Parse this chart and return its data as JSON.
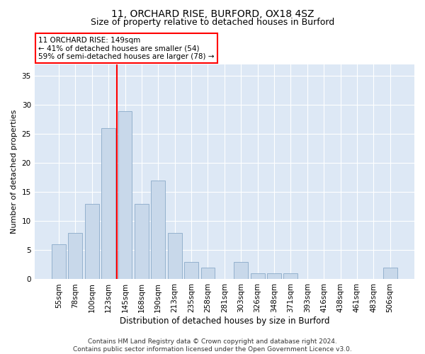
{
  "title1": "11, ORCHARD RISE, BURFORD, OX18 4SZ",
  "title2": "Size of property relative to detached houses in Burford",
  "xlabel": "Distribution of detached houses by size in Burford",
  "ylabel": "Number of detached properties",
  "categories": [
    "55sqm",
    "78sqm",
    "100sqm",
    "123sqm",
    "145sqm",
    "168sqm",
    "190sqm",
    "213sqm",
    "235sqm",
    "258sqm",
    "281sqm",
    "303sqm",
    "326sqm",
    "348sqm",
    "371sqm",
    "393sqm",
    "416sqm",
    "438sqm",
    "461sqm",
    "483sqm",
    "506sqm"
  ],
  "bar_heights": [
    6,
    8,
    13,
    26,
    29,
    13,
    17,
    8,
    3,
    2,
    0,
    3,
    1,
    1,
    1,
    0,
    0,
    0,
    0,
    0,
    2
  ],
  "bar_color": "#c8d8ea",
  "bar_edge_color": "#8aaac8",
  "vline_x_index": 3.5,
  "vline_color": "red",
  "annotation_text": "11 ORCHARD RISE: 149sqm\n← 41% of detached houses are smaller (54)\n59% of semi-detached houses are larger (78) →",
  "annotation_box_color": "white",
  "annotation_box_edge_color": "red",
  "ylim": [
    0,
    37
  ],
  "yticks": [
    0,
    5,
    10,
    15,
    20,
    25,
    30,
    35
  ],
  "plot_bg_color": "#dde8f5",
  "footnote": "Contains HM Land Registry data © Crown copyright and database right 2024.\nContains public sector information licensed under the Open Government Licence v3.0.",
  "title1_fontsize": 10,
  "title2_fontsize": 9,
  "xlabel_fontsize": 8.5,
  "ylabel_fontsize": 8,
  "tick_fontsize": 7.5,
  "footnote_fontsize": 6.5
}
